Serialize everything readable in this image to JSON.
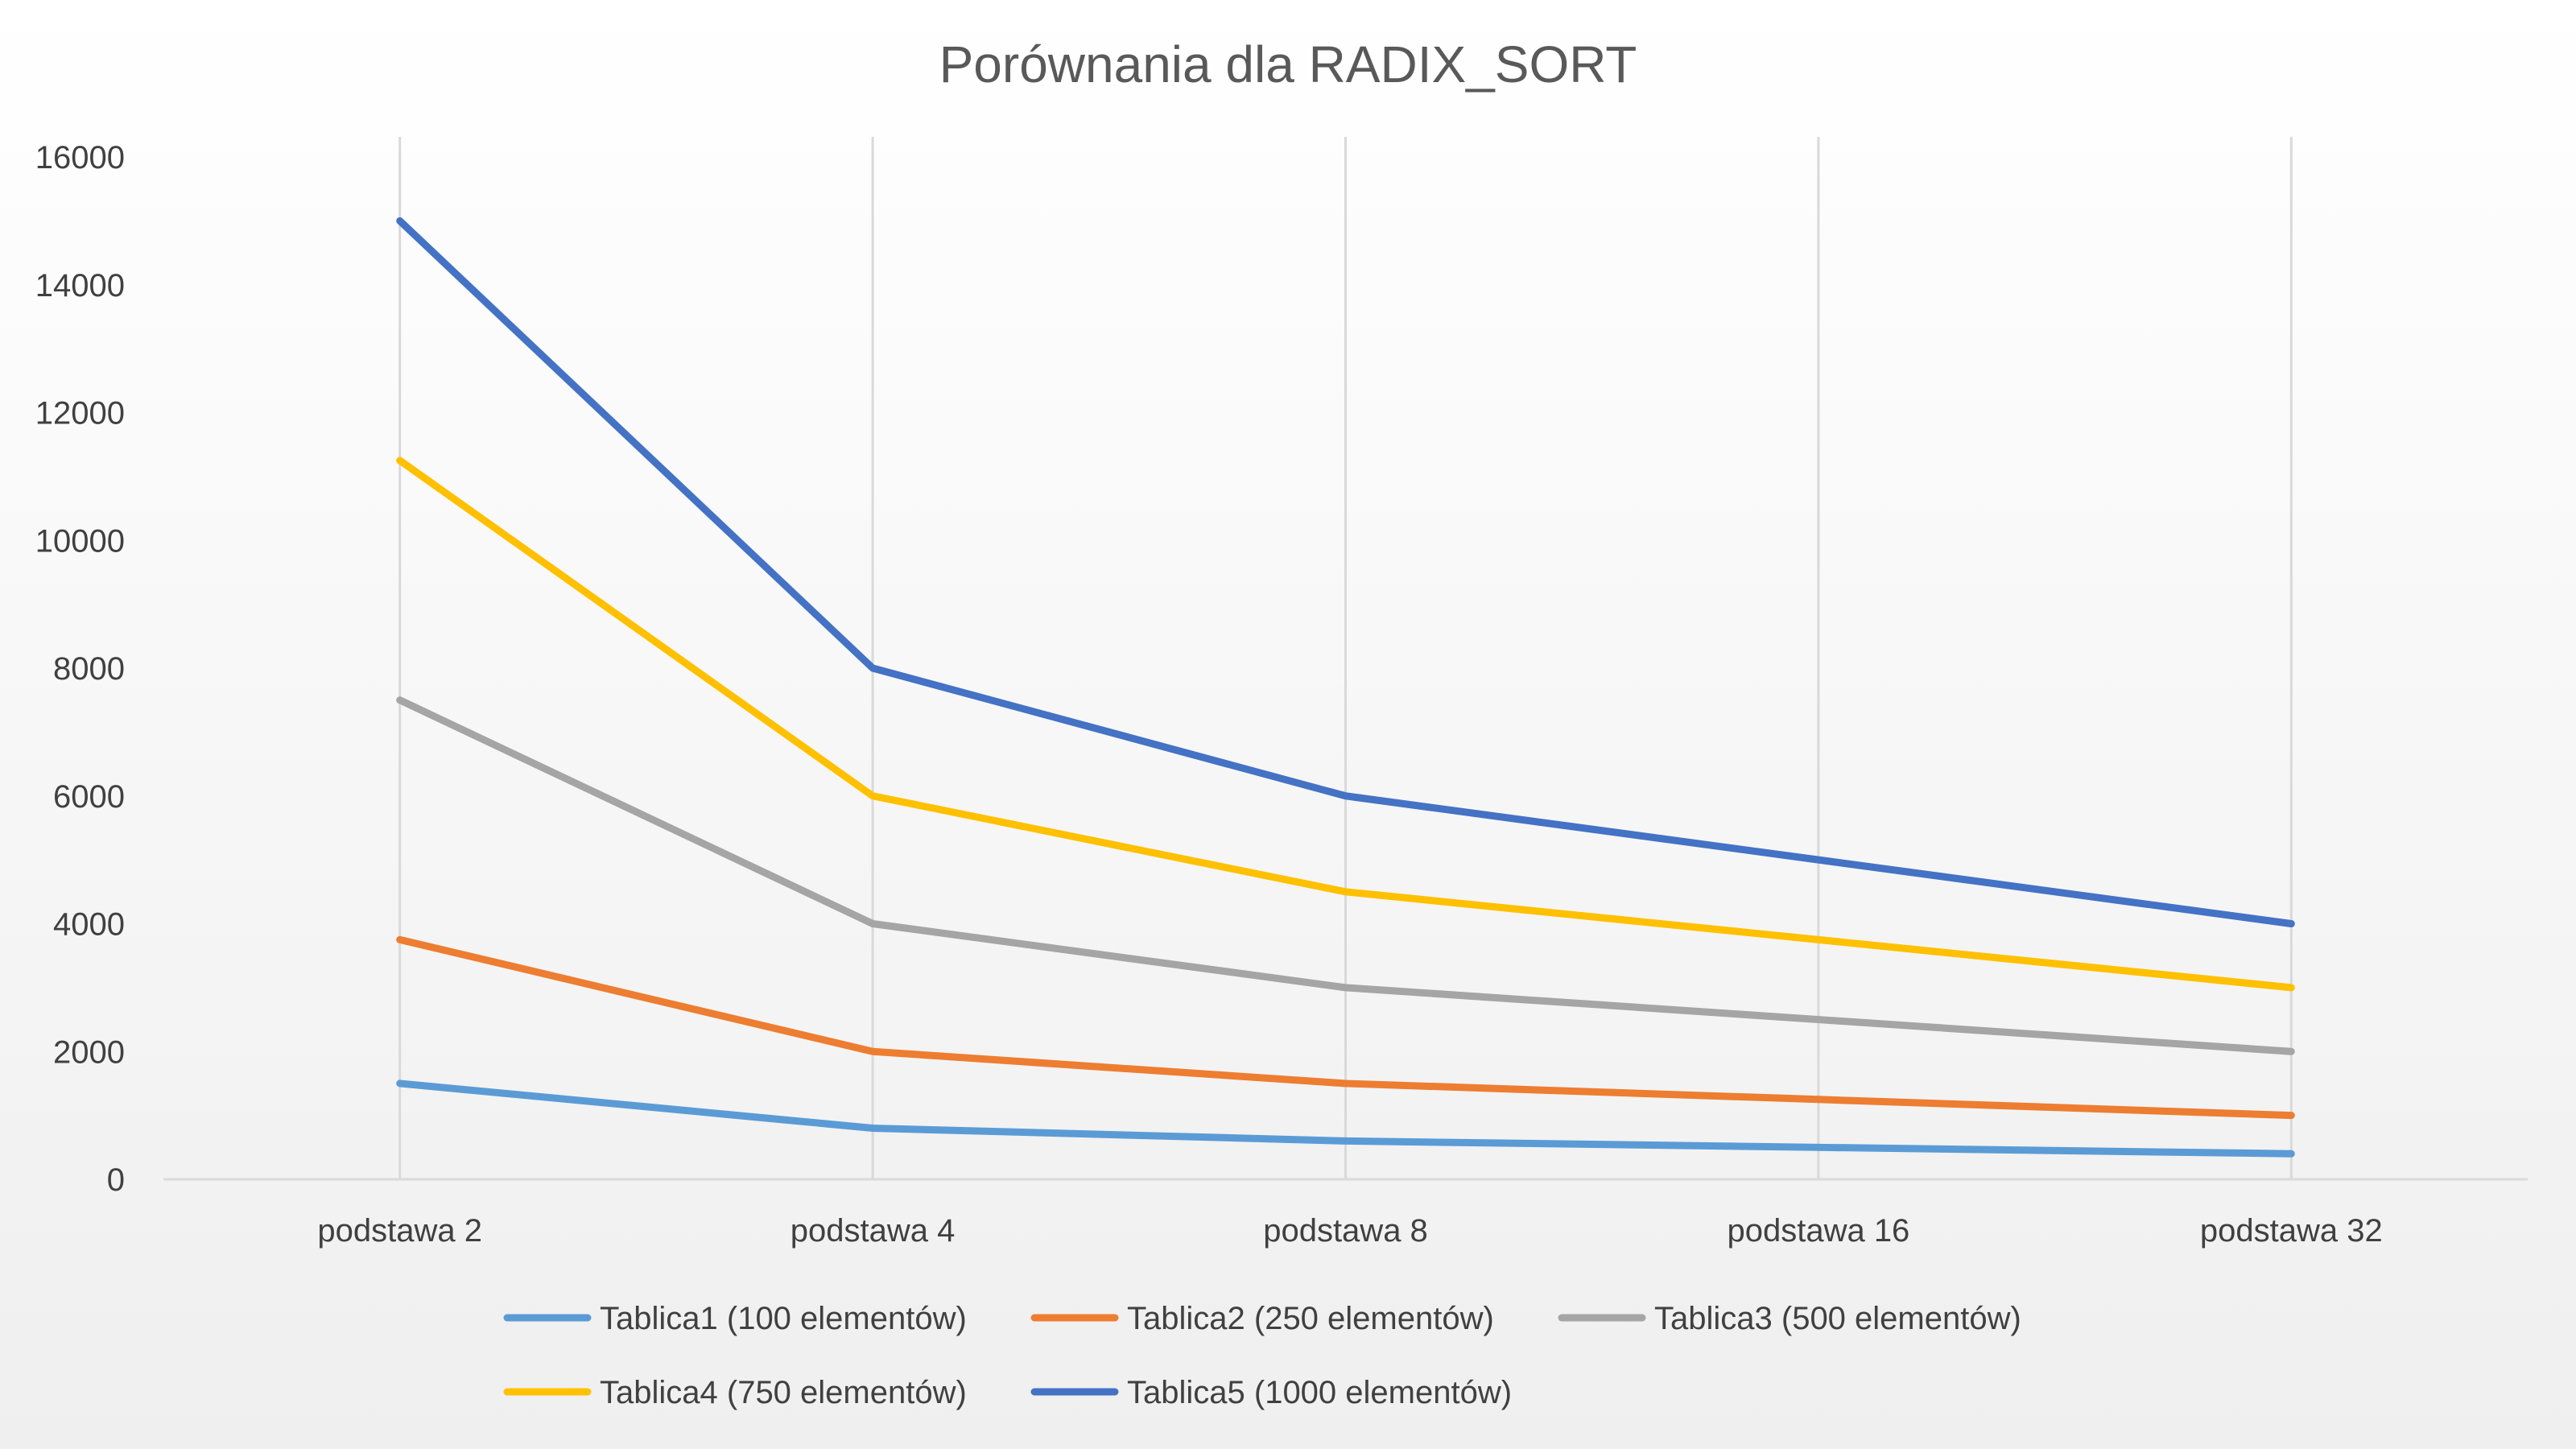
{
  "chart_data": {
    "type": "line",
    "title": "Porównania dla RADIX_SORT",
    "xlabel": "",
    "ylabel": "",
    "categories": [
      "podstawa 2",
      "podstawa 4",
      "podstawa 8",
      "podstawa 16",
      "podstawa 32"
    ],
    "ylim": [
      0,
      16000
    ],
    "yticks": [
      0,
      2000,
      4000,
      6000,
      8000,
      10000,
      12000,
      14000,
      16000
    ],
    "grid": "vertical",
    "legend_position": "bottom",
    "series": [
      {
        "name": "Tablica1 (100 elementów)",
        "color": "#5b9bd5",
        "values": [
          1500,
          800,
          600,
          500,
          400
        ]
      },
      {
        "name": "Tablica2 (250 elementów)",
        "color": "#ed7d31",
        "values": [
          3750,
          2000,
          1500,
          1250,
          1000
        ]
      },
      {
        "name": "Tablica3 (500 elementów)",
        "color": "#a5a5a5",
        "values": [
          7500,
          4000,
          3000,
          2500,
          2000
        ]
      },
      {
        "name": "Tablica4 (750 elementów)",
        "color": "#ffc000",
        "values": [
          11250,
          6000,
          4500,
          3750,
          3000
        ]
      },
      {
        "name": "Tablica5 (1000 elementów)",
        "color": "#4472c4",
        "values": [
          15000,
          8000,
          6000,
          5000,
          4000
        ]
      }
    ]
  }
}
